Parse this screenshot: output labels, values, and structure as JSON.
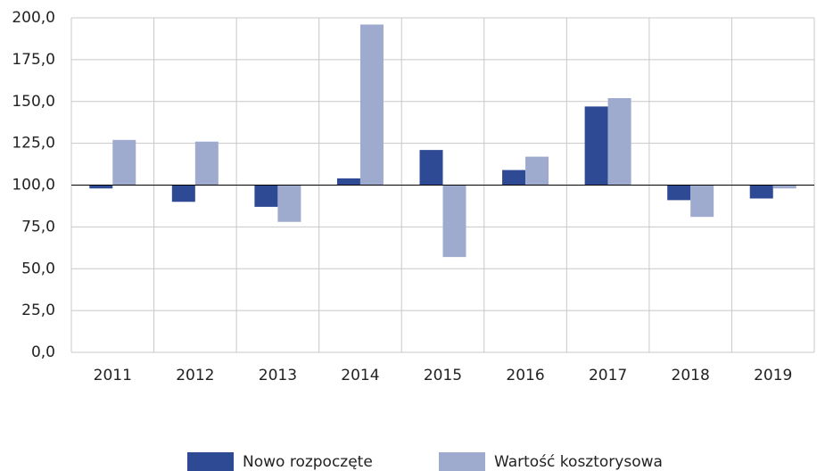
{
  "chart_data": {
    "type": "bar",
    "categories": [
      "2011",
      "2012",
      "2013",
      "2014",
      "2015",
      "2016",
      "2017",
      "2018",
      "2019"
    ],
    "series": [
      {
        "name": "Nowo rozpoczęte",
        "color": "#2e4a94",
        "values": [
          98,
          90,
          87,
          104,
          121,
          109,
          147,
          91,
          92
        ]
      },
      {
        "name": "Wartość kosztorysowa",
        "color": "#9eabcf",
        "values": [
          127,
          126,
          78,
          196,
          57,
          117,
          152,
          81,
          98
        ]
      }
    ],
    "baseline": 100,
    "ylim": [
      0,
      200
    ],
    "yticks": [
      {
        "value": 0,
        "label": "0,0"
      },
      {
        "value": 25,
        "label": "25,0"
      },
      {
        "value": 50,
        "label": "50,0"
      },
      {
        "value": 75,
        "label": "75,0"
      },
      {
        "value": 100,
        "label": "100,0"
      },
      {
        "value": 125,
        "label": "125,0"
      },
      {
        "value": 150,
        "label": "150,0"
      },
      {
        "value": 175,
        "label": "175,0"
      },
      {
        "value": 200,
        "label": "200,0"
      }
    ],
    "grid": true,
    "legend": "bottom"
  }
}
